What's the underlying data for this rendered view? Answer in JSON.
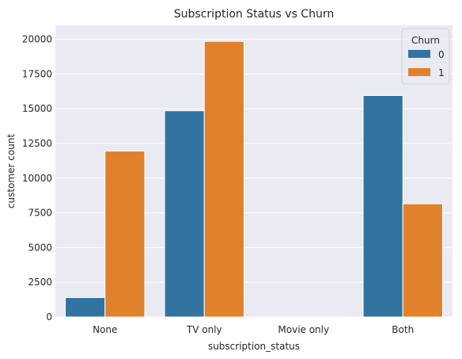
{
  "chart_data": {
    "type": "bar",
    "title": "Subscription Status vs Churn",
    "xlabel": "subscription_status",
    "ylabel": "customer count",
    "categories": [
      "None",
      "TV only",
      "Movie only",
      "Both"
    ],
    "series": [
      {
        "name": "0",
        "color": "#3274a1",
        "values": [
          1400,
          14850,
          0,
          15950
        ]
      },
      {
        "name": "1",
        "color": "#e1812c",
        "values": [
          11950,
          19850,
          0,
          8150
        ]
      }
    ],
    "ylim": [
      0,
      21000
    ],
    "yticks": [
      0,
      2500,
      5000,
      7500,
      10000,
      12500,
      15000,
      17500,
      20000
    ],
    "grid": true,
    "legend": {
      "title": "Churn",
      "placement": "top-right"
    },
    "background": "#eaeaf2"
  }
}
